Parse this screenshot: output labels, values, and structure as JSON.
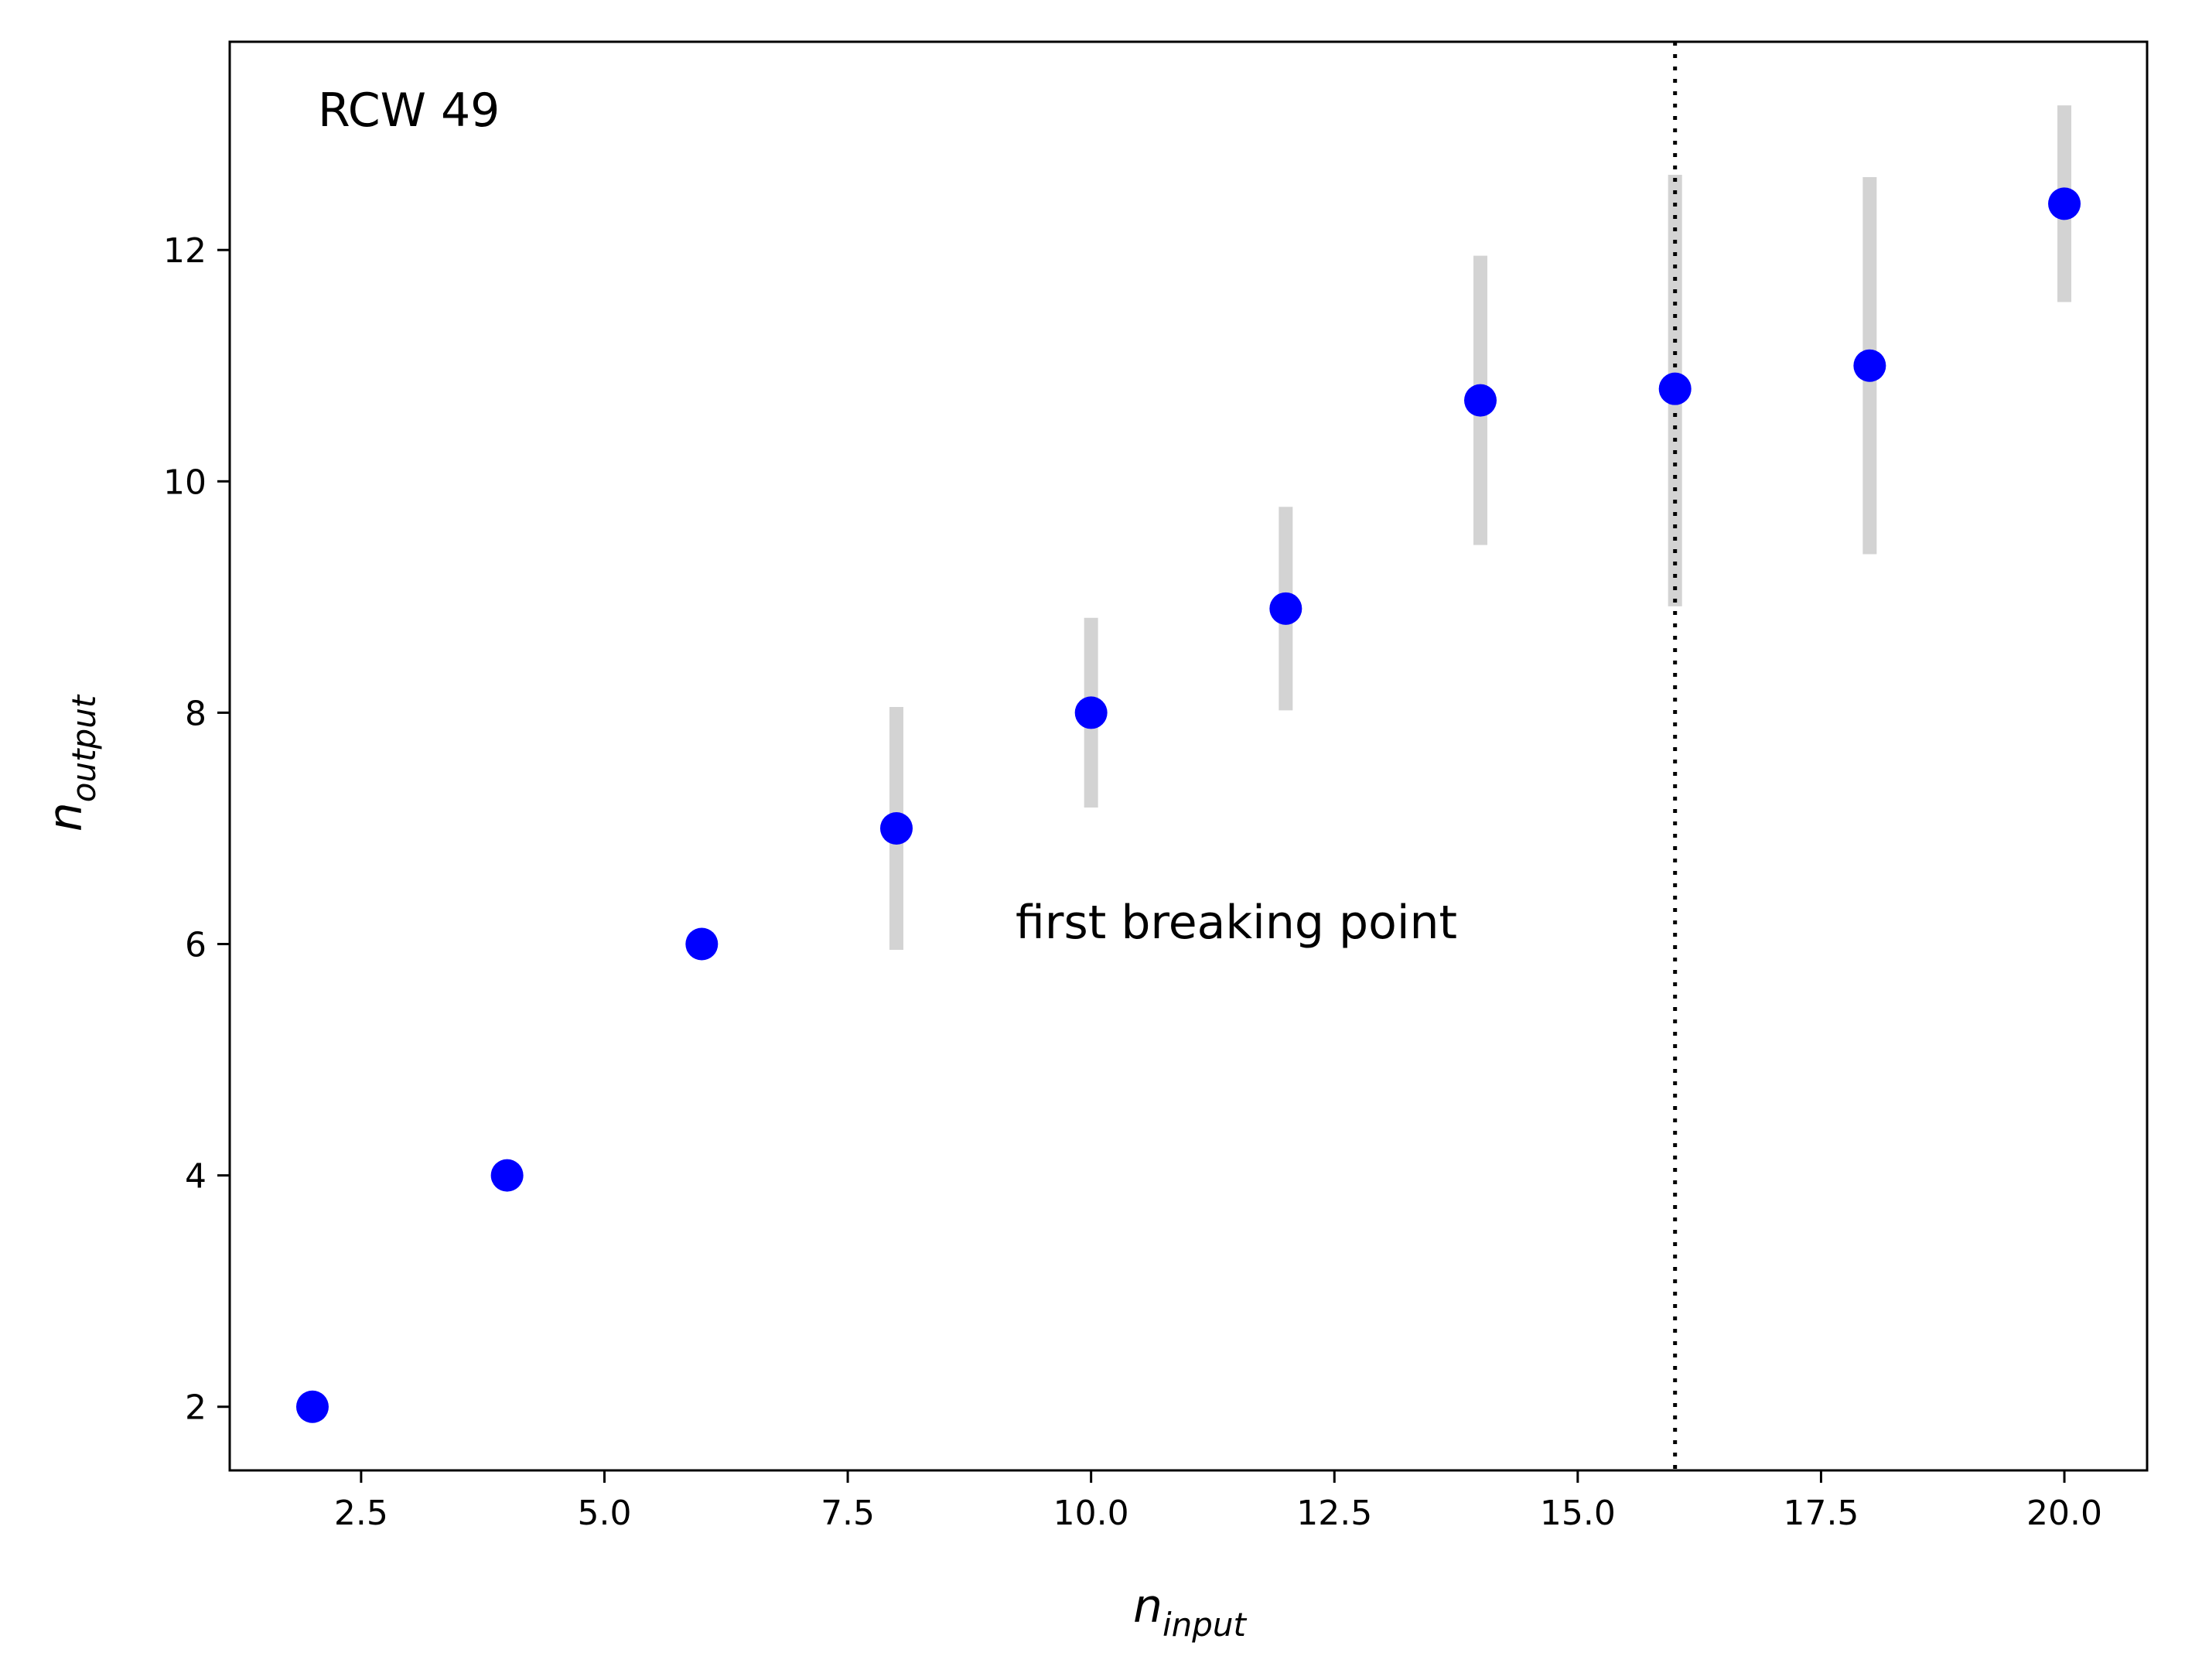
{
  "chart_data": {
    "type": "scatter",
    "title": "",
    "annotations": {
      "region_label": "RCW 49",
      "vline_label": "first breaking point",
      "vline_x": 16
    },
    "xlabel": {
      "base": "n",
      "subscript": "input"
    },
    "ylabel": {
      "base": "n",
      "subscript": "output"
    },
    "xlim": [
      1.15,
      20.85
    ],
    "ylim": [
      1.45,
      13.8
    ],
    "xticks": [
      2.5,
      5.0,
      7.5,
      10.0,
      12.5,
      15.0,
      17.5,
      20.0
    ],
    "xtick_labels": [
      "2.5",
      "5.0",
      "7.5",
      "10.0",
      "12.5",
      "15.0",
      "17.5",
      "20.0"
    ],
    "yticks": [
      2,
      4,
      6,
      8,
      10,
      12
    ],
    "ytick_labels": [
      "2",
      "4",
      "6",
      "8",
      "10",
      "12"
    ],
    "grid": false,
    "series": [
      {
        "marker_color": "#0000ff",
        "errorbar_color": "#d3d3d3",
        "points": [
          {
            "x": 2,
            "y": 2.0,
            "err_low": 2.0,
            "err_high": 2.0
          },
          {
            "x": 4,
            "y": 4.0,
            "err_low": 4.0,
            "err_high": 4.0
          },
          {
            "x": 6,
            "y": 6.0,
            "err_low": 6.0,
            "err_high": 6.0
          },
          {
            "x": 8,
            "y": 7.0,
            "err_low": 5.95,
            "err_high": 8.05
          },
          {
            "x": 10,
            "y": 8.0,
            "err_low": 7.18,
            "err_high": 8.82
          },
          {
            "x": 12,
            "y": 8.9,
            "err_low": 8.02,
            "err_high": 9.78
          },
          {
            "x": 14,
            "y": 10.7,
            "err_low": 9.45,
            "err_high": 11.95
          },
          {
            "x": 16,
            "y": 10.8,
            "err_low": 8.92,
            "err_high": 12.65
          },
          {
            "x": 18,
            "y": 11.0,
            "err_low": 9.37,
            "err_high": 12.63
          },
          {
            "x": 20,
            "y": 12.4,
            "err_low": 11.55,
            "err_high": 13.25
          }
        ]
      }
    ]
  }
}
